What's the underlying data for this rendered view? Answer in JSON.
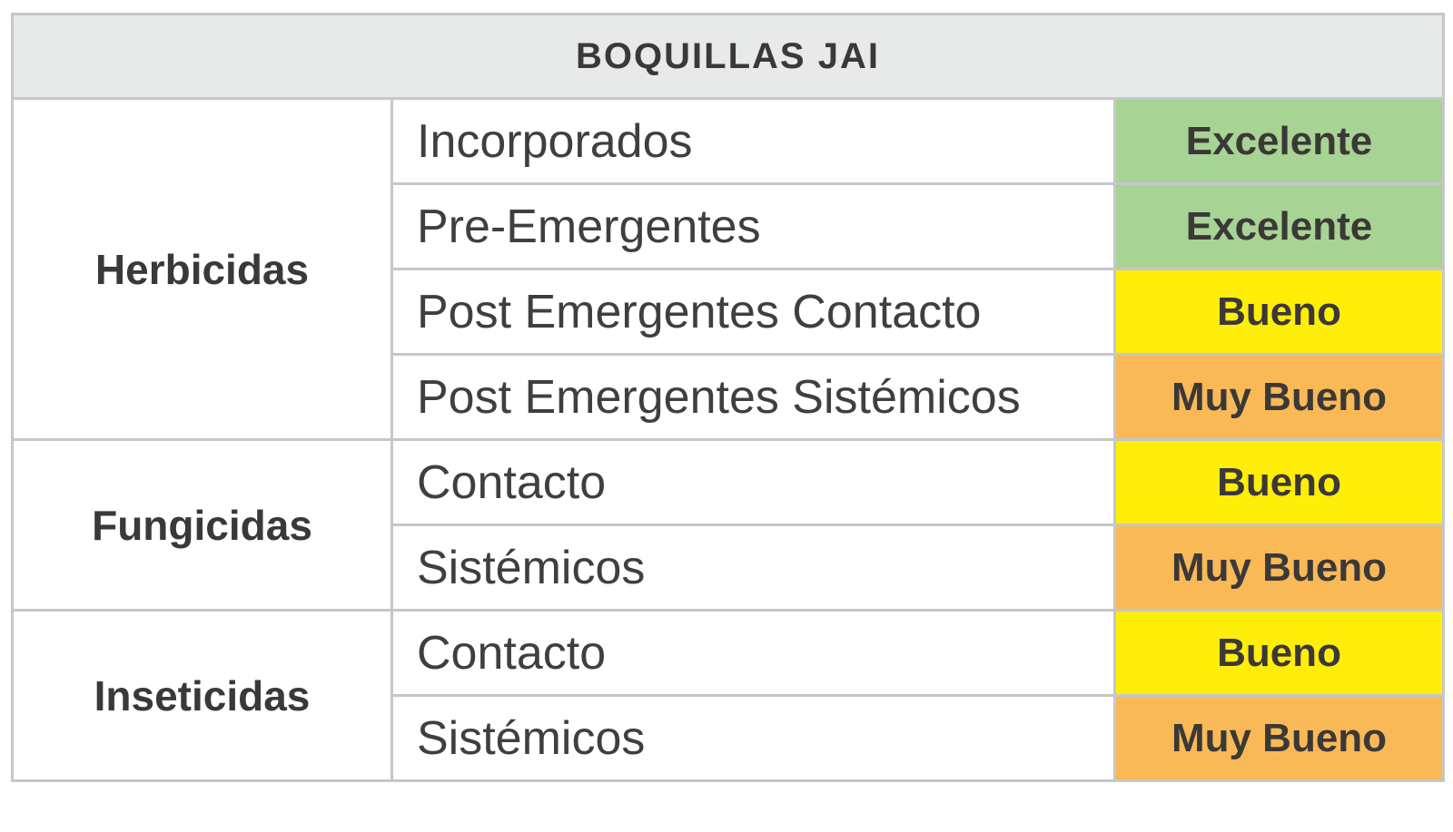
{
  "title": "BOQUILLAS JAI",
  "colors": {
    "page_bg": "#FFFFFF",
    "cell_bg": "#FFFFFF",
    "header_bg": "#E8E9E9",
    "border": "#C5C7C9",
    "text_dark": "#3B3838",
    "text_type": "#3F3F3F",
    "rating_green": "#A7D394",
    "rating_yellow": "#FFED0A",
    "rating_orange": "#F9B956"
  },
  "groups": [
    {
      "category": "Herbicidas",
      "rows": [
        {
          "type": "Incorporados",
          "rating": "Excelente",
          "rating_color": "rating_green"
        },
        {
          "type": "Pre-Emergentes",
          "rating": "Excelente",
          "rating_color": "rating_green"
        },
        {
          "type": "Post Emergentes Contacto",
          "rating": "Bueno",
          "rating_color": "rating_yellow"
        },
        {
          "type": "Post Emergentes Sistémicos",
          "rating": "Muy Bueno",
          "rating_color": "rating_orange"
        }
      ]
    },
    {
      "category": "Fungicidas",
      "rows": [
        {
          "type": "Contacto",
          "rating": "Bueno",
          "rating_color": "rating_yellow"
        },
        {
          "type": "Sistémicos",
          "rating": "Muy Bueno",
          "rating_color": "rating_orange"
        }
      ]
    },
    {
      "category": "Inseticidas",
      "rows": [
        {
          "type": "Contacto",
          "rating": "Bueno",
          "rating_color": "rating_yellow"
        },
        {
          "type": "Sistémicos",
          "rating": "Muy Bueno",
          "rating_color": "rating_orange"
        }
      ]
    }
  ],
  "chart_data": {
    "type": "table",
    "title": "BOQUILLAS JAI",
    "rows": [
      [
        "Herbicidas",
        "Incorporados",
        "Excelente"
      ],
      [
        "Herbicidas",
        "Pre-Emergentes",
        "Excelente"
      ],
      [
        "Herbicidas",
        "Post Emergentes Contacto",
        "Bueno"
      ],
      [
        "Herbicidas",
        "Post Emergentes Sistémicos",
        "Muy Bueno"
      ],
      [
        "Fungicidas",
        "Contacto",
        "Bueno"
      ],
      [
        "Fungicidas",
        "Sistémicos",
        "Muy Bueno"
      ],
      [
        "Inseticidas",
        "Contacto",
        "Bueno"
      ],
      [
        "Inseticidas",
        "Sistémicos",
        "Muy Bueno"
      ]
    ],
    "rating_colors": {
      "Excelente": "#A7D394",
      "Bueno": "#FFED0A",
      "Muy Bueno": "#F9B956"
    },
    "layout_hints": {
      "header_spans_all_columns": true,
      "category_column_uses_rowspan": true,
      "grid": true
    }
  }
}
